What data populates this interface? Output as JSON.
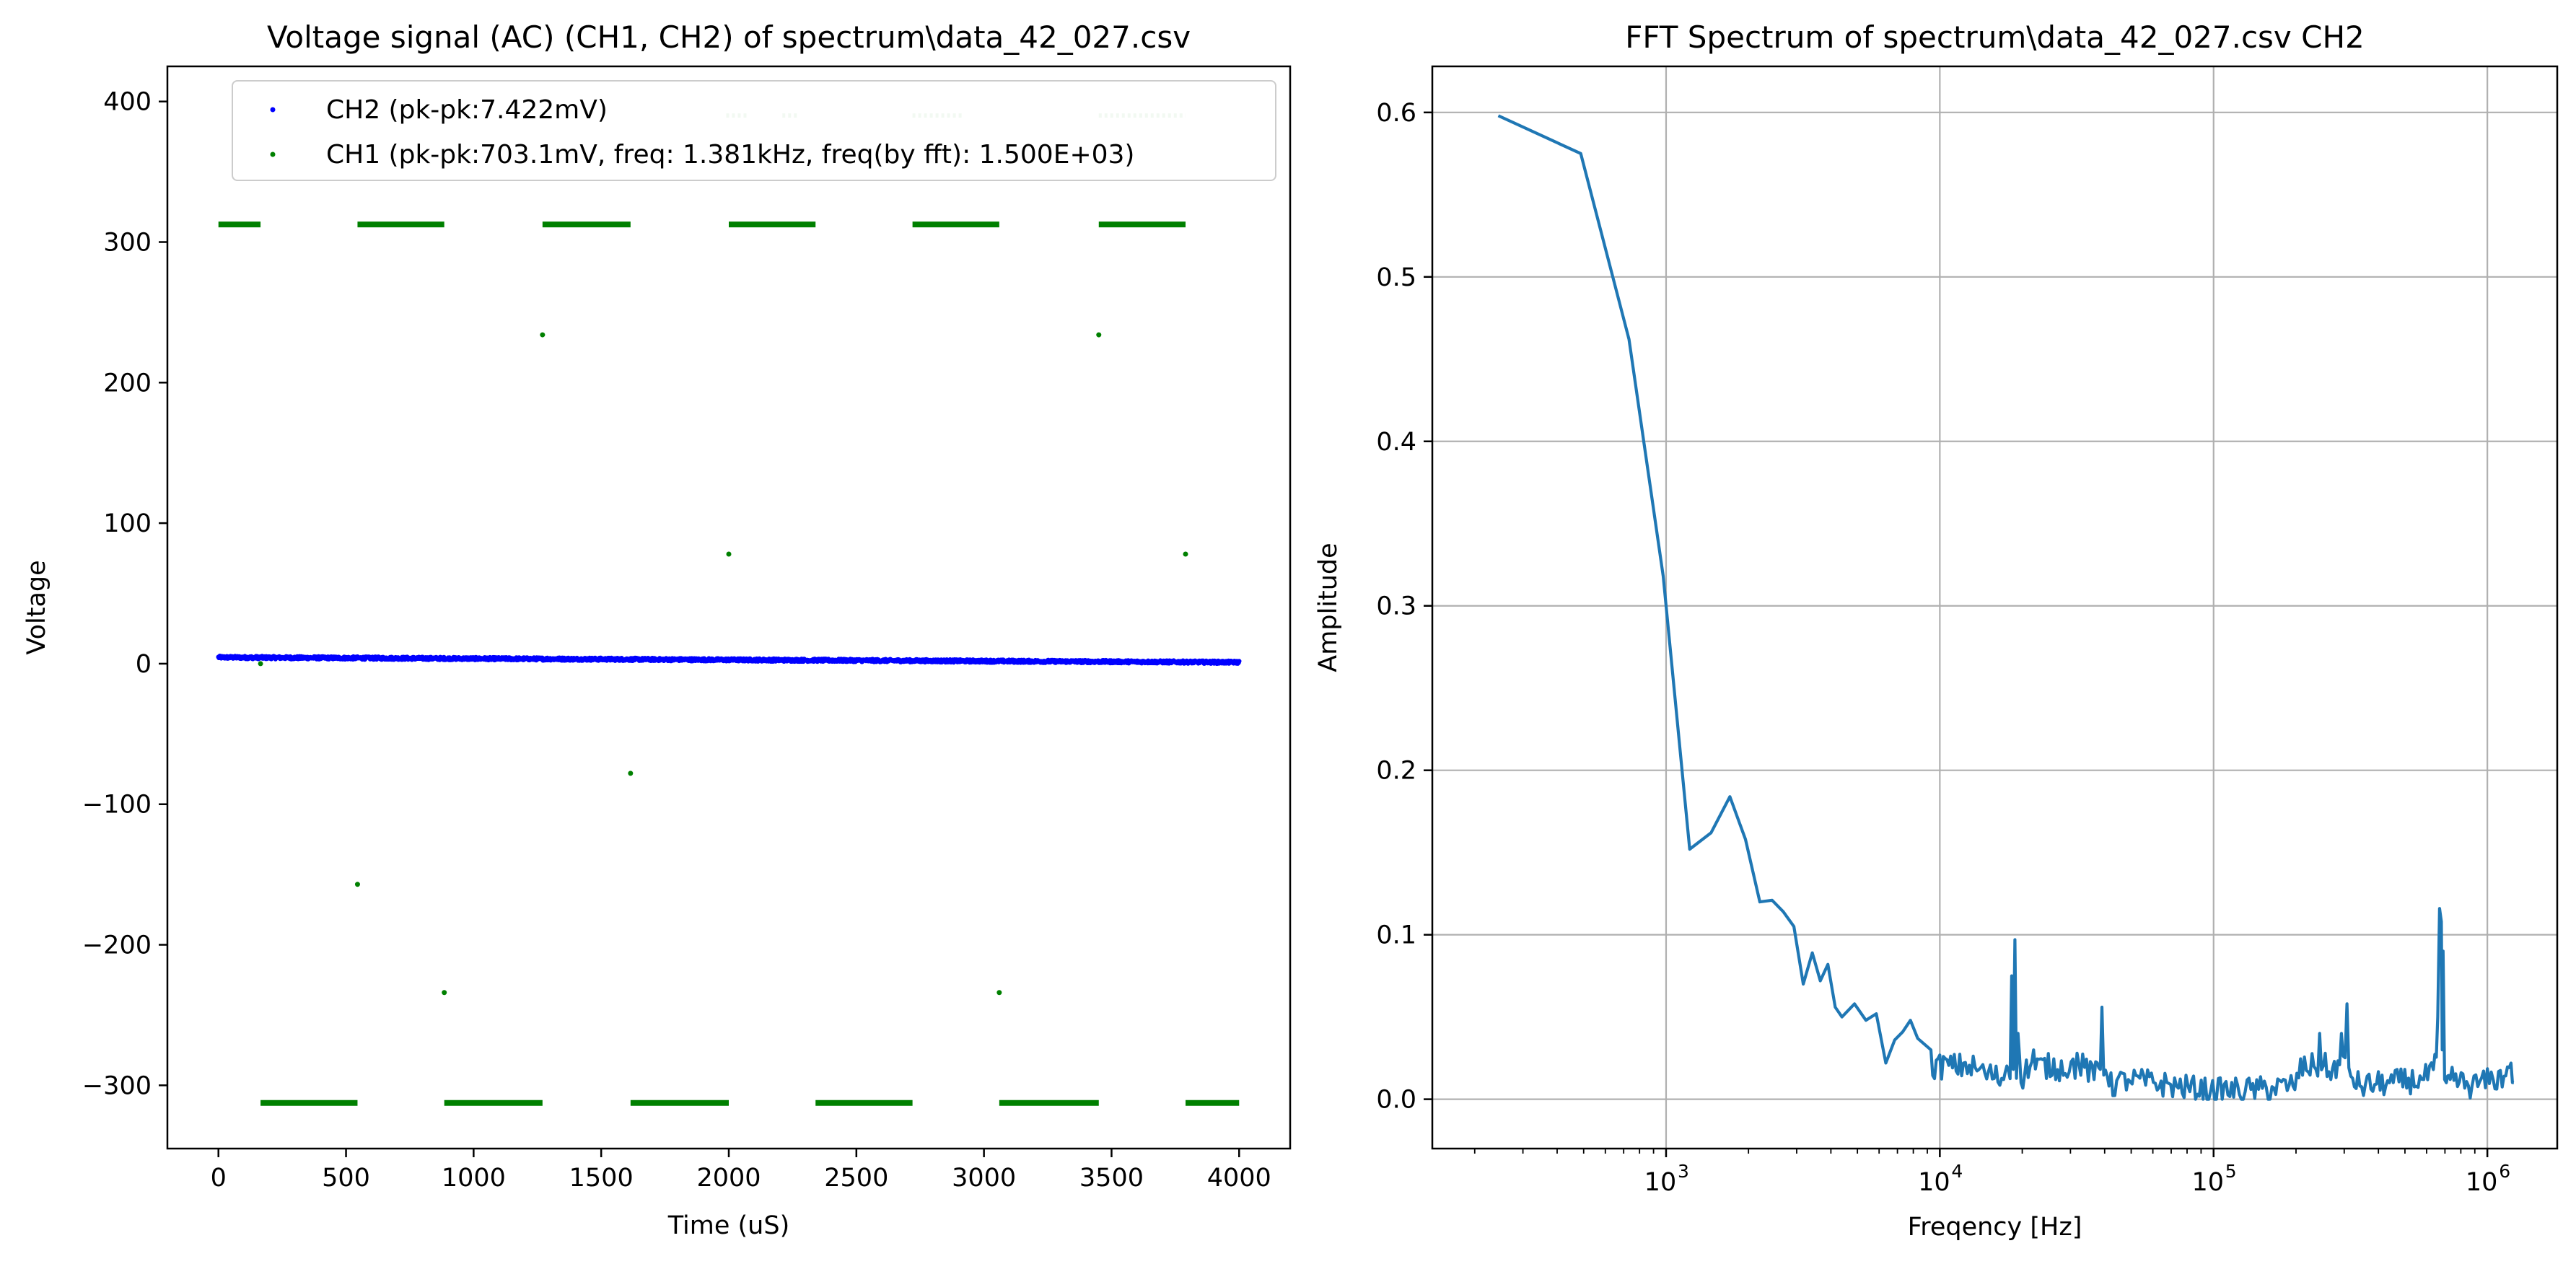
{
  "chart_data": [
    {
      "type": "scatter",
      "title": "Voltage signal (AC) (CH1, CH2) of spectrum\\data_42_027.csv",
      "xlabel": "Time (uS)",
      "ylabel": "Voltage",
      "xlim": [
        -200,
        4200
      ],
      "ylim": [
        -345,
        425
      ],
      "xticks": [
        0,
        500,
        1000,
        1500,
        2000,
        2500,
        3000,
        3500,
        4000
      ],
      "xtick_labels": [
        "0",
        "500",
        "1000",
        "1500",
        "2000",
        "2500",
        "3000",
        "3500",
        "4000"
      ],
      "yticks": [
        -300,
        -200,
        -100,
        0,
        100,
        200,
        300,
        400
      ],
      "ytick_labels": [
        "−300",
        "−200",
        "−100",
        "0",
        "100",
        "200",
        "300",
        "400"
      ],
      "grid": false,
      "legend_position": "top-right",
      "series": [
        {
          "name": "CH2 (pk-pk:7.422mV)",
          "color": "#0000ff",
          "kind": "trace",
          "x_range": [
            0,
            4000
          ],
          "y_start": 4.5,
          "y_end": 1.0,
          "noise": 1.0
        },
        {
          "name": "CH1 (pk-pk:703.1mV, freq: 1.381kHz, freq(by fft): 1.500E+03)",
          "color": "#008000",
          "kind": "square",
          "high": 312.5,
          "low": -312.5,
          "high_segments": [
            [
              0,
              165
            ],
            [
              545,
              885
            ],
            [
              1270,
              1615
            ],
            [
              2000,
              2340
            ],
            [
              2720,
              3060
            ],
            [
              3450,
              3790
            ]
          ],
          "low_segments": [
            [
              165,
              545
            ],
            [
              885,
              1270
            ],
            [
              1615,
              2000
            ],
            [
              2340,
              2720
            ],
            [
              3060,
              3450
            ],
            [
              3790,
              4000
            ]
          ],
          "transition_points": [
            [
              165,
              0
            ],
            [
              545,
              -157
            ],
            [
              885,
              -234
            ],
            [
              1270,
              234
            ],
            [
              1615,
              -78
            ],
            [
              2000,
              78
            ],
            [
              3060,
              -234
            ],
            [
              3450,
              234
            ],
            [
              3790,
              78
            ]
          ],
          "faint_top_segments": [
            [
              1990,
              2080
            ],
            [
              2210,
              2270
            ],
            [
              2720,
              2920
            ],
            [
              3450,
              3790
            ]
          ],
          "faint_top_level": 390
        }
      ]
    },
    {
      "type": "line",
      "title": "FFT Spectrum of spectrum\\data_42_027.csv CH2",
      "xlabel": "Freqency [Hz]",
      "ylabel": "Amplitude",
      "x_scale": "log",
      "xlim": [
        140,
        1800000
      ],
      "ylim": [
        -0.03,
        0.628
      ],
      "xticks": [
        1000,
        10000,
        100000,
        1000000
      ],
      "xtick_labels": [
        [
          "10",
          "3"
        ],
        [
          "10",
          "4"
        ],
        [
          "10",
          "5"
        ],
        [
          "10",
          "6"
        ]
      ],
      "yticks": [
        0.0,
        0.1,
        0.2,
        0.3,
        0.4,
        0.5,
        0.6
      ],
      "ytick_labels": [
        "0.0",
        "0.1",
        "0.2",
        "0.3",
        "0.4",
        "0.5",
        "0.6"
      ],
      "grid": true,
      "series": [
        {
          "color": "#1f77b4",
          "x": [
            244,
            488,
            732,
            976,
            1220,
            1460,
            1710,
            1950,
            2200,
            2440,
            2680,
            2930,
            3170,
            3420,
            3660,
            3900,
            4150,
            4390,
            4880,
            5370,
            5860,
            6350,
            6840,
            7320,
            7810,
            8300,
            9280,
            10300,
            12200,
            14600,
            17100,
            18300,
            18800,
            19300,
            19800,
            22000,
            26900,
            31700,
            36600,
            39100,
            41500,
            48800,
            73200,
            97600,
            146000,
            195000,
            244000,
            268000,
            293000,
            307000,
            317000,
            342000,
            439000,
            586000,
            635000,
            659000,
            669000,
            679000,
            684000,
            689000,
            698000,
            708000,
            732000,
            879000,
            1050000,
            1150000,
            1220000,
            1250000
          ],
          "y": [
            0.598,
            0.575,
            0.462,
            0.318,
            0.152,
            0.162,
            0.184,
            0.158,
            0.12,
            0.121,
            0.114,
            0.105,
            0.07,
            0.089,
            0.072,
            0.082,
            0.056,
            0.05,
            0.058,
            0.048,
            0.052,
            0.022,
            0.036,
            0.041,
            0.048,
            0.037,
            0.03,
            0.026,
            0.022,
            0.016,
            0.012,
            0.075,
            0.097,
            0.04,
            0.01,
            0.03,
            0.018,
            0.028,
            0.012,
            0.056,
            0.008,
            0.012,
            0.008,
            0.005,
            0.006,
            0.008,
            0.04,
            0.012,
            0.04,
            0.058,
            0.014,
            0.008,
            0.01,
            0.012,
            0.018,
            0.05,
            0.116,
            0.108,
            0.03,
            0.09,
            0.012,
            0.01,
            0.012,
            0.008,
            0.012,
            0.014,
            0.022,
            0.01
          ],
          "noise_floor": 0.008
        }
      ]
    }
  ]
}
